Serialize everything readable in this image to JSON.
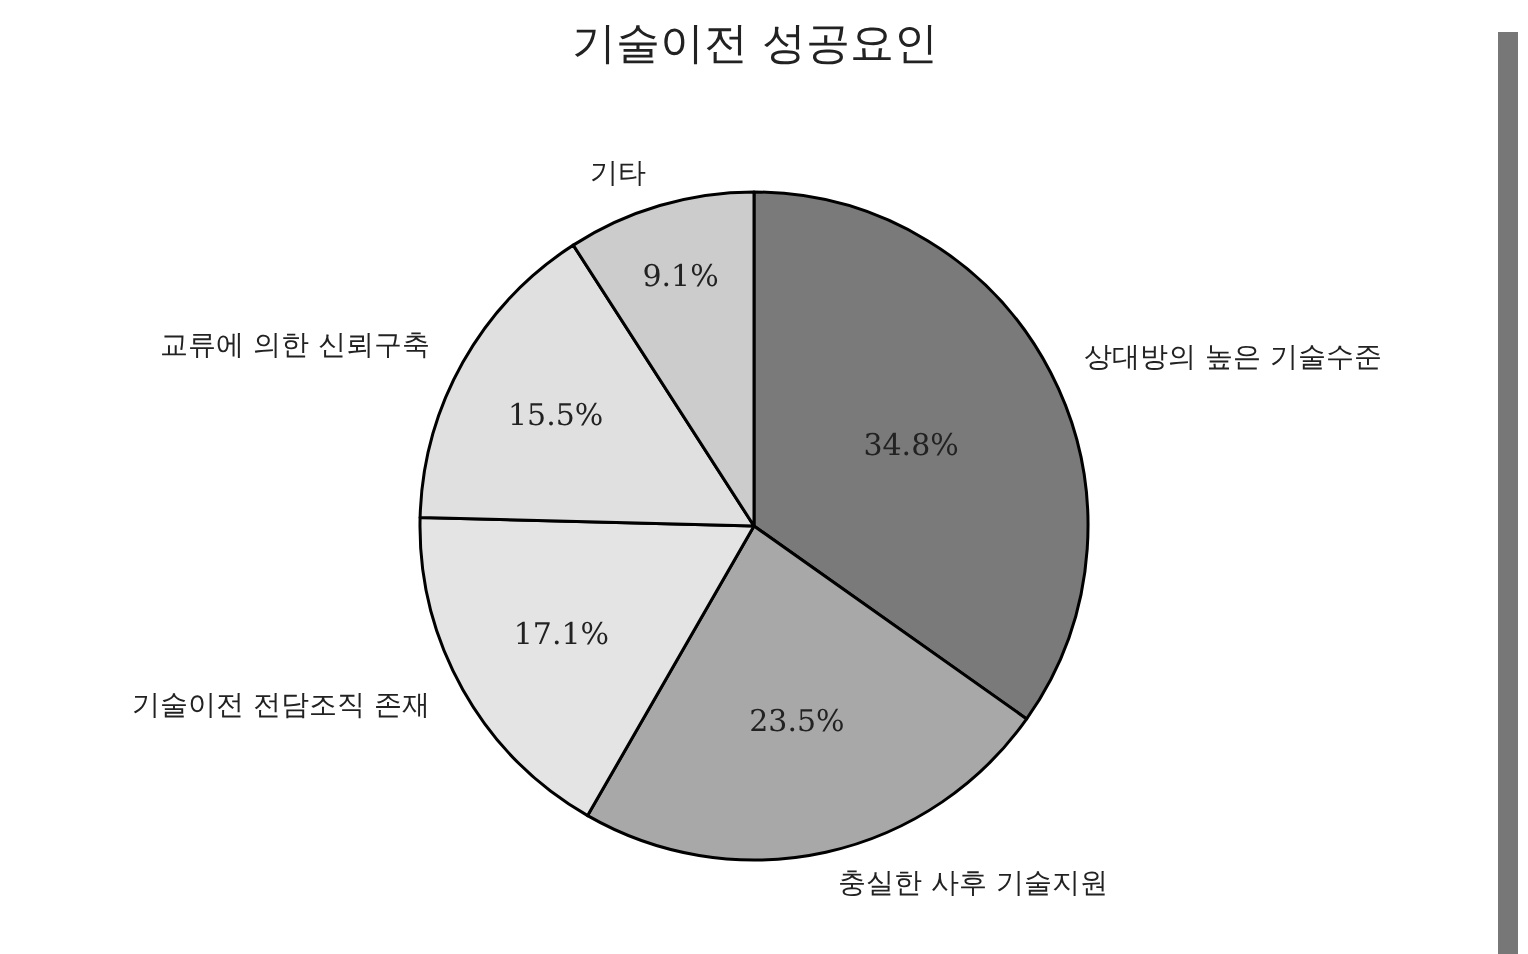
{
  "chart_data": {
    "type": "pie",
    "title": "기술이전 성공요인",
    "categories": [
      "상대방의 높은 기술수준",
      "충실한 사후 기술지원",
      "기술이전 전담조직 존재",
      "교류에 의한 신뢰구축",
      "기타"
    ],
    "values": [
      34.8,
      23.5,
      17.1,
      15.5,
      9.1
    ],
    "value_labels": [
      "34.8%",
      "23.5%",
      "17.1%",
      "15.5%",
      "9.1%"
    ],
    "colors": [
      "#7a7a7a",
      "#a8a8a8",
      "#e4e4e4",
      "#e0e0e0",
      "#cccccc"
    ],
    "legend": false
  }
}
